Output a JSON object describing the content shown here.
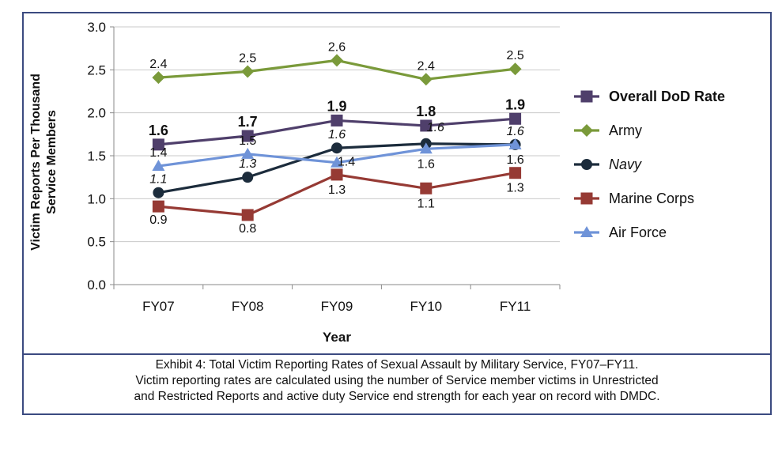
{
  "chart_data": {
    "type": "line",
    "categories": [
      "FY07",
      "FY08",
      "FY09",
      "FY10",
      "FY11"
    ],
    "xlabel": "Year",
    "ylabel_lines": [
      "Victim Reports Per Thousand",
      "Service Members"
    ],
    "ylim": [
      0,
      3
    ],
    "yticks": [
      "0.0",
      "0.5",
      "1.0",
      "1.5",
      "2.0",
      "2.5",
      "3.0"
    ],
    "grid": true,
    "legend_position": "right",
    "series": [
      {
        "name": "Overall DoD Rate",
        "values": [
          1.63,
          1.73,
          1.91,
          1.85,
          1.93
        ],
        "labels": [
          "1.6",
          "1.7",
          "1.9",
          "1.8",
          "1.9"
        ],
        "color": "#4f3f6b",
        "marker": "square",
        "label_style": "bold",
        "legend_style": "bold"
      },
      {
        "name": "Army",
        "values": [
          2.41,
          2.48,
          2.61,
          2.39,
          2.51
        ],
        "labels": [
          "2.4",
          "2.5",
          "2.6",
          "2.4",
          "2.5"
        ],
        "color": "#7a9a3a",
        "marker": "diamond",
        "label_style": "normal",
        "legend_style": "normal"
      },
      {
        "name": "Navy",
        "values": [
          1.07,
          1.25,
          1.59,
          1.64,
          1.63
        ],
        "labels": [
          "1.1",
          "1.3",
          "1.6",
          "1.6",
          "1.6"
        ],
        "color": "#1c2c3c",
        "marker": "circle",
        "label_style": "italic",
        "legend_style": "italic"
      },
      {
        "name": "Marine Corps",
        "values": [
          0.91,
          0.81,
          1.28,
          1.12,
          1.3
        ],
        "labels": [
          "0.9",
          "0.8",
          "1.3",
          "1.1",
          "1.3"
        ],
        "color": "#963a34",
        "marker": "square",
        "label_style": "normal",
        "legend_style": "normal"
      },
      {
        "name": "Air Force",
        "values": [
          1.38,
          1.52,
          1.42,
          1.58,
          1.63
        ],
        "labels": [
          "1.4",
          "1.5",
          "1.4",
          "1.6",
          "1.6"
        ],
        "color": "#6f93d8",
        "marker": "triangle",
        "label_style": "normal",
        "legend_style": "normal"
      }
    ]
  },
  "caption": {
    "line1": "Exhibit 4:  Total Victim Reporting Rates of Sexual Assault by Military Service, FY07–FY11.",
    "line2": "Victim reporting rates are calculated using the number of Service member victims in Unrestricted",
    "line3": "and Restricted Reports and active duty Service end strength for each year on record with DMDC."
  }
}
